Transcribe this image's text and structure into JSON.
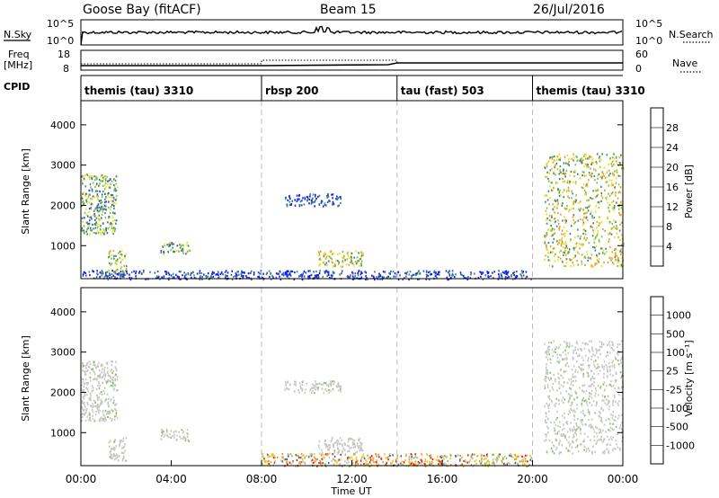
{
  "header": {
    "station": "Goose Bay (fitACF)",
    "beam": "Beam 15",
    "date": "26/Jul/2016"
  },
  "top_panels": {
    "nsky_label": "N.Sky",
    "nsearch_label": "N.Search",
    "freq_label_line1": "Freq",
    "freq_label_line2": "[MHz]",
    "nave_label": "Nave",
    "cpid_label": "CPID",
    "noise_left_ticks": [
      "10^5",
      "10^0"
    ],
    "noise_right_ticks": [
      "10^5",
      "10^0"
    ],
    "freq_left_ticks": [
      "18",
      "8"
    ],
    "nave_right_ticks": [
      "60",
      "0"
    ],
    "cpid_segments": [
      {
        "label": "themis (tau) 3310",
        "start_hour": 0,
        "end_hour": 8
      },
      {
        "label": "rbsp 200",
        "start_hour": 8,
        "end_hour": 14
      },
      {
        "label": "tau (fast) 503",
        "start_hour": 14,
        "end_hour": 20
      },
      {
        "label": "themis (tau) 3310",
        "start_hour": 20,
        "end_hour": 24
      }
    ]
  },
  "chart_data": [
    {
      "type": "heatmap",
      "panel": "power",
      "ylabel": "Slant Range [km]",
      "xlabel": "",
      "xlim_hours": [
        0,
        24
      ],
      "ylim": [
        180,
        4600
      ],
      "yticks": [
        1000,
        2000,
        3000,
        4000
      ],
      "colorbar": {
        "label": "Power [dB]",
        "ticks": [
          "4",
          "8",
          "12",
          "16",
          "20",
          "24",
          "28"
        ],
        "colors": [
          "#0a1aff",
          "#3a56b8",
          "#3d8a6a",
          "#7cc058",
          "#e8e020",
          "#f3a01e",
          "#f26b12",
          "#e22a12"
        ]
      },
      "echo_regions": [
        {
          "t_start": 0.0,
          "t_end": 1.6,
          "r_start": 1300,
          "r_end": 2800,
          "level": "moderate"
        },
        {
          "t_start": 1.2,
          "t_end": 2.0,
          "r_start": 300,
          "r_end": 900,
          "level": "strong"
        },
        {
          "t_start": 3.5,
          "t_end": 4.8,
          "r_start": 800,
          "r_end": 1100,
          "level": "moderate"
        },
        {
          "t_start": 10.5,
          "t_end": 12.5,
          "r_start": 500,
          "r_end": 900,
          "level": "strong"
        },
        {
          "t_start": 9.0,
          "t_end": 11.5,
          "r_start": 2000,
          "r_end": 2300,
          "level": "weak"
        },
        {
          "t_start": 20.5,
          "t_end": 24.0,
          "r_start": 500,
          "r_end": 3300,
          "level": "strong"
        },
        {
          "t_start": 0.0,
          "t_end": 20.0,
          "r_start": 180,
          "r_end": 400,
          "level": "weak"
        }
      ]
    },
    {
      "type": "heatmap",
      "panel": "velocity",
      "ylabel": "Slant Range [km]",
      "xlabel": "Time UT",
      "xlim_hours": [
        0,
        24
      ],
      "ylim": [
        180,
        4600
      ],
      "yticks": [
        1000,
        2000,
        3000,
        4000
      ],
      "xticks": [
        "00:00",
        "04:00",
        "08:00",
        "12:00",
        "16:00",
        "20:00",
        "00:00"
      ],
      "colorbar": {
        "label": "Velocity [m s⁻¹]",
        "ticks": [
          "1000",
          "500",
          "100",
          "25",
          "-25",
          "-100",
          "-500",
          "-1000"
        ],
        "colors": [
          "#1f2fb0",
          "#3a64b0",
          "#3d8a6a",
          "#82c25a",
          "#c6c6c2",
          "#f2c21e",
          "#f3921e",
          "#f2601a",
          "#e21a12"
        ]
      },
      "echo_regions": [
        {
          "t_start": 0.0,
          "t_end": 1.6,
          "r_start": 1300,
          "r_end": 2800,
          "class": "ground_scatter"
        },
        {
          "t_start": 1.2,
          "t_end": 2.0,
          "r_start": 300,
          "r_end": 900,
          "class": "ground_scatter"
        },
        {
          "t_start": 3.5,
          "t_end": 4.8,
          "r_start": 800,
          "r_end": 1100,
          "class": "ground_scatter"
        },
        {
          "t_start": 10.5,
          "t_end": 12.5,
          "r_start": 500,
          "r_end": 900,
          "class": "ground_scatter"
        },
        {
          "t_start": 9.0,
          "t_end": 11.5,
          "r_start": 2000,
          "r_end": 2300,
          "class": "ground_scatter"
        },
        {
          "t_start": 20.5,
          "t_end": 24.0,
          "r_start": 500,
          "r_end": 3300,
          "class": "ground_scatter"
        },
        {
          "t_start": 8.0,
          "t_end": 20.0,
          "r_start": 180,
          "r_end": 500,
          "class": "ionospheric"
        }
      ]
    }
  ]
}
